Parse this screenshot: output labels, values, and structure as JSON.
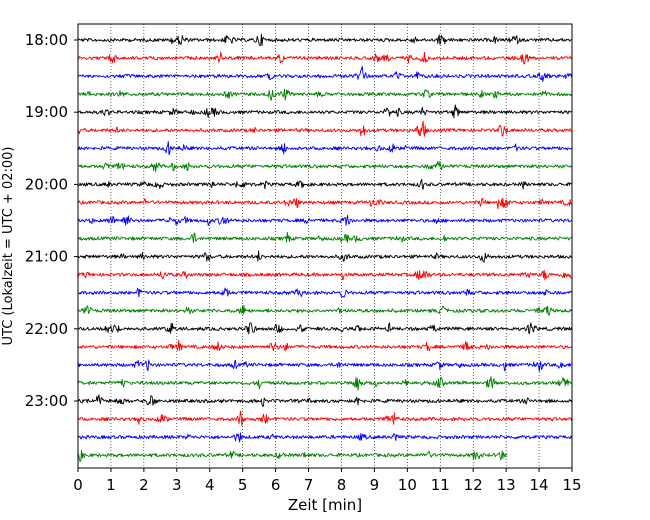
{
  "chart_data": {
    "type": "line",
    "title": "",
    "xlabel": "Zeit  [min]",
    "ylabel": "UTC (Lokalzeit = UTC + 02:00)",
    "xlim": [
      0,
      15
    ],
    "x_ticks": [
      0,
      1,
      2,
      3,
      4,
      5,
      6,
      7,
      8,
      9,
      10,
      11,
      12,
      13,
      14,
      15
    ],
    "x_tick_labels": [
      "0",
      "1",
      "2",
      "3",
      "4",
      "5",
      "6",
      "7",
      "8",
      "9",
      "10",
      "11",
      "12",
      "13",
      "14",
      "15"
    ],
    "y_tick_labels": [
      "18:00",
      "19:00",
      "20:00",
      "21:00",
      "22:00",
      "23:00"
    ],
    "vertical_grid": true,
    "grid_style": "dotted",
    "row_interval_min": 15,
    "color_cycle": [
      "#000000",
      "#ff0000",
      "#0000ff",
      "#008000"
    ],
    "traces": [
      {
        "start": "18:00",
        "color": "#000000",
        "x_end": 15
      },
      {
        "start": "18:15",
        "color": "#ff0000",
        "x_end": 15
      },
      {
        "start": "18:30",
        "color": "#0000ff",
        "x_end": 15
      },
      {
        "start": "18:45",
        "color": "#008000",
        "x_end": 15
      },
      {
        "start": "19:00",
        "color": "#000000",
        "x_end": 15
      },
      {
        "start": "19:15",
        "color": "#ff0000",
        "x_end": 15
      },
      {
        "start": "19:30",
        "color": "#0000ff",
        "x_end": 15
      },
      {
        "start": "19:45",
        "color": "#008000",
        "x_end": 15
      },
      {
        "start": "20:00",
        "color": "#000000",
        "x_end": 15
      },
      {
        "start": "20:15",
        "color": "#ff0000",
        "x_end": 15
      },
      {
        "start": "20:30",
        "color": "#0000ff",
        "x_end": 15
      },
      {
        "start": "20:45",
        "color": "#008000",
        "x_end": 15
      },
      {
        "start": "21:00",
        "color": "#000000",
        "x_end": 15
      },
      {
        "start": "21:15",
        "color": "#ff0000",
        "x_end": 15
      },
      {
        "start": "21:30",
        "color": "#0000ff",
        "x_end": 15
      },
      {
        "start": "21:45",
        "color": "#008000",
        "x_end": 15
      },
      {
        "start": "22:00",
        "color": "#000000",
        "x_end": 15
      },
      {
        "start": "22:15",
        "color": "#ff0000",
        "x_end": 15
      },
      {
        "start": "22:30",
        "color": "#0000ff",
        "x_end": 15
      },
      {
        "start": "22:45",
        "color": "#008000",
        "x_end": 15
      },
      {
        "start": "23:00",
        "color": "#000000",
        "x_end": 15
      },
      {
        "start": "23:15",
        "color": "#ff0000",
        "x_end": 15
      },
      {
        "start": "23:30",
        "color": "#0000ff",
        "x_end": 15
      },
      {
        "start": "23:45",
        "color": "#008000",
        "x_end": 13.05
      }
    ]
  }
}
